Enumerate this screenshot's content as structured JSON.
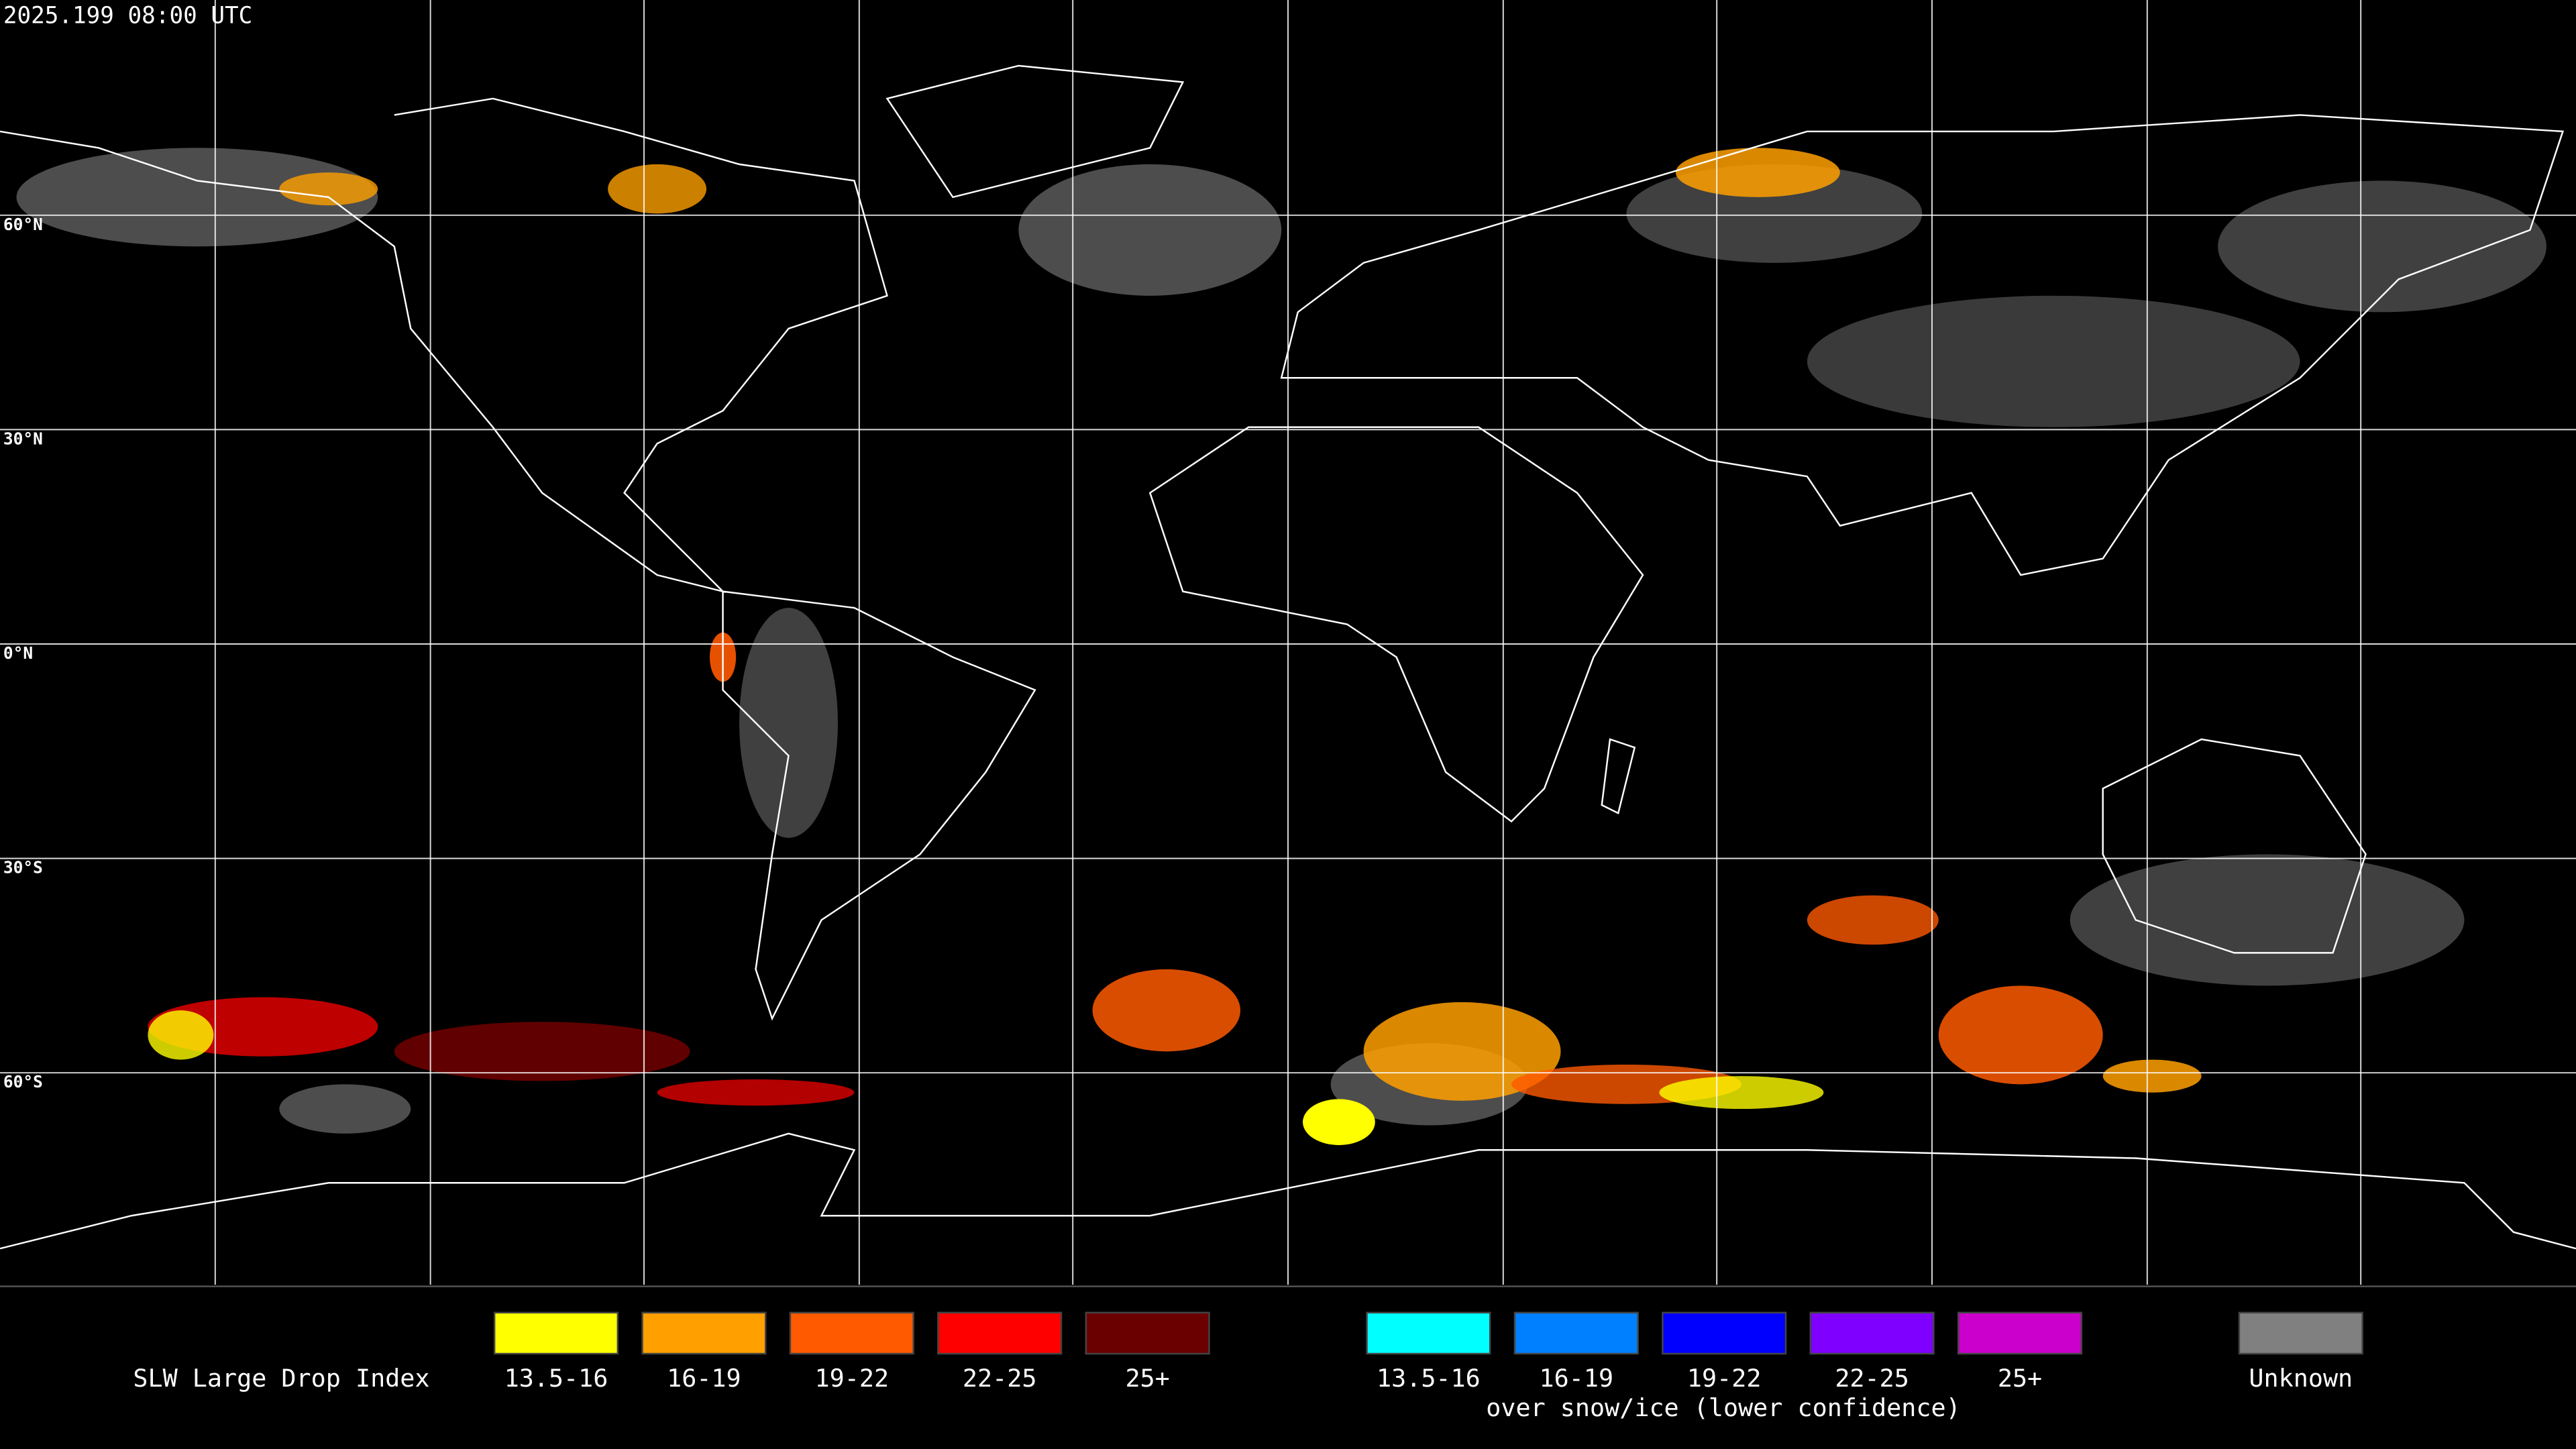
{
  "timestamp": "2025.199 08:00 UTC",
  "latitude_labels": [
    "60°N",
    "30°N",
    "0°N",
    "30°S",
    "60°S"
  ],
  "legend": {
    "title": "SLW Large Drop Index",
    "liquid": [
      {
        "label": "13.5-16",
        "color": "#ffff00"
      },
      {
        "label": "16-19",
        "color": "#ffa000"
      },
      {
        "label": "19-22",
        "color": "#ff5a00"
      },
      {
        "label": "22-25",
        "color": "#ff0000"
      },
      {
        "label": "25+",
        "color": "#6b0000"
      }
    ],
    "snow_ice": [
      {
        "label": "13.5-16",
        "color": "#00ffff"
      },
      {
        "label": "16-19",
        "color": "#0080ff"
      },
      {
        "label": "19-22",
        "color": "#0000ff"
      },
      {
        "label": "22-25",
        "color": "#7f00ff"
      },
      {
        "label": "25+",
        "color": "#cc00cc"
      }
    ],
    "snow_ice_note": "over snow/ice (lower confidence)",
    "unknown": {
      "label": "Unknown",
      "color": "#808080"
    }
  }
}
